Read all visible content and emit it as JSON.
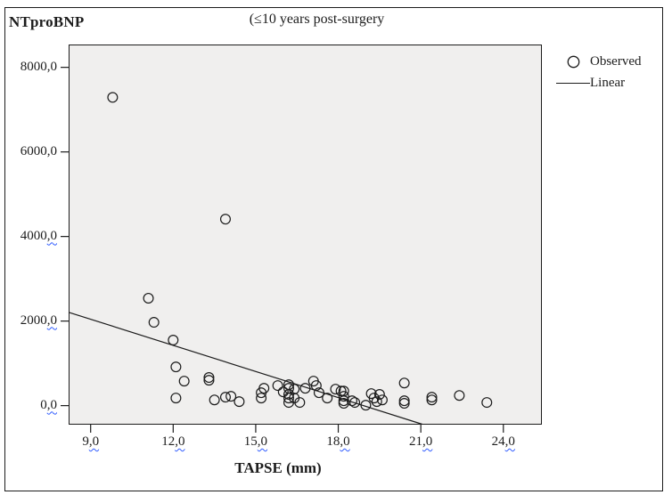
{
  "figure": {
    "corner_ylabel": "NTproBNP",
    "title": "(≤10 years post-surgery",
    "xlabel": "TAPSE (mm)"
  },
  "legend": {
    "observed_label": "Observed",
    "linear_label": "Linear"
  },
  "colors": {
    "plot_bg": "#f0efee",
    "stroke": "#1c1c1c",
    "squiggle_blue": "#2f5bff"
  },
  "chart_data": {
    "type": "scatter",
    "title": "(≤10 years post-surgery",
    "xlabel": "TAPSE (mm)",
    "ylabel": "NTproBNP",
    "x_range": [
      8.2,
      25.4
    ],
    "y_range": [
      -450,
      8540
    ],
    "grid": false,
    "legend_position": "top-right-outside",
    "x_ticks": [
      {
        "value": 9,
        "label": "9,0",
        "squiggle_under_decimal": true
      },
      {
        "value": 12,
        "label": "12,0",
        "squiggle_under_decimal": true
      },
      {
        "value": 15,
        "label": "15,0",
        "squiggle_under_decimal": true
      },
      {
        "value": 18,
        "label": "18,0",
        "squiggle_under_decimal": true
      },
      {
        "value": 21,
        "label": "21,0",
        "squiggle_under_decimal": true
      },
      {
        "value": 24,
        "label": "24,0",
        "squiggle_under_decimal": true
      }
    ],
    "y_ticks": [
      {
        "value": 0,
        "label": "0,0",
        "squiggle_under_decimal": true
      },
      {
        "value": 2000,
        "label": "2000,0",
        "squiggle_under_decimal": true
      },
      {
        "value": 4000,
        "label": "4000,0",
        "squiggle_under_decimal": true
      },
      {
        "value": 6000,
        "label": "6000,0",
        "squiggle_under_decimal": false
      },
      {
        "value": 8000,
        "label": "8000,0",
        "squiggle_under_decimal": false
      }
    ],
    "series": [
      {
        "name": "Observed",
        "marker": "open-circle",
        "points": [
          [
            9.8,
            7290
          ],
          [
            13.9,
            4410
          ],
          [
            11.1,
            2540
          ],
          [
            11.3,
            1970
          ],
          [
            12.0,
            1550
          ],
          [
            12.1,
            915
          ],
          [
            12.4,
            580
          ],
          [
            12.1,
            180
          ],
          [
            13.3,
            665
          ],
          [
            13.3,
            600
          ],
          [
            13.5,
            135
          ],
          [
            13.9,
            200
          ],
          [
            14.1,
            220
          ],
          [
            14.4,
            95
          ],
          [
            15.2,
            305
          ],
          [
            15.2,
            180
          ],
          [
            15.3,
            410
          ],
          [
            15.8,
            475
          ],
          [
            16.0,
            325
          ],
          [
            16.2,
            495
          ],
          [
            16.2,
            410
          ],
          [
            16.4,
            390
          ],
          [
            16.2,
            265
          ],
          [
            16.2,
            180
          ],
          [
            16.2,
            75
          ],
          [
            16.4,
            180
          ],
          [
            16.6,
            75
          ],
          [
            16.8,
            410
          ],
          [
            17.1,
            580
          ],
          [
            17.2,
            475
          ],
          [
            17.3,
            305
          ],
          [
            17.6,
            180
          ],
          [
            17.9,
            390
          ],
          [
            18.1,
            345
          ],
          [
            18.2,
            345
          ],
          [
            18.2,
            220
          ],
          [
            18.2,
            115
          ],
          [
            18.2,
            55
          ],
          [
            18.5,
            115
          ],
          [
            18.6,
            75
          ],
          [
            19.0,
            10
          ],
          [
            19.2,
            285
          ],
          [
            19.3,
            180
          ],
          [
            19.5,
            265
          ],
          [
            19.6,
            135
          ],
          [
            19.4,
            95
          ],
          [
            20.4,
            535
          ],
          [
            20.4,
            115
          ],
          [
            20.4,
            55
          ],
          [
            21.4,
            200
          ],
          [
            21.4,
            135
          ],
          [
            22.4,
            240
          ],
          [
            23.4,
            75
          ]
        ]
      }
    ],
    "trend_line": {
      "name": "Linear",
      "slope": -206,
      "intercept": 3897,
      "x_start": 8.2,
      "x_end": 21.05
    }
  }
}
